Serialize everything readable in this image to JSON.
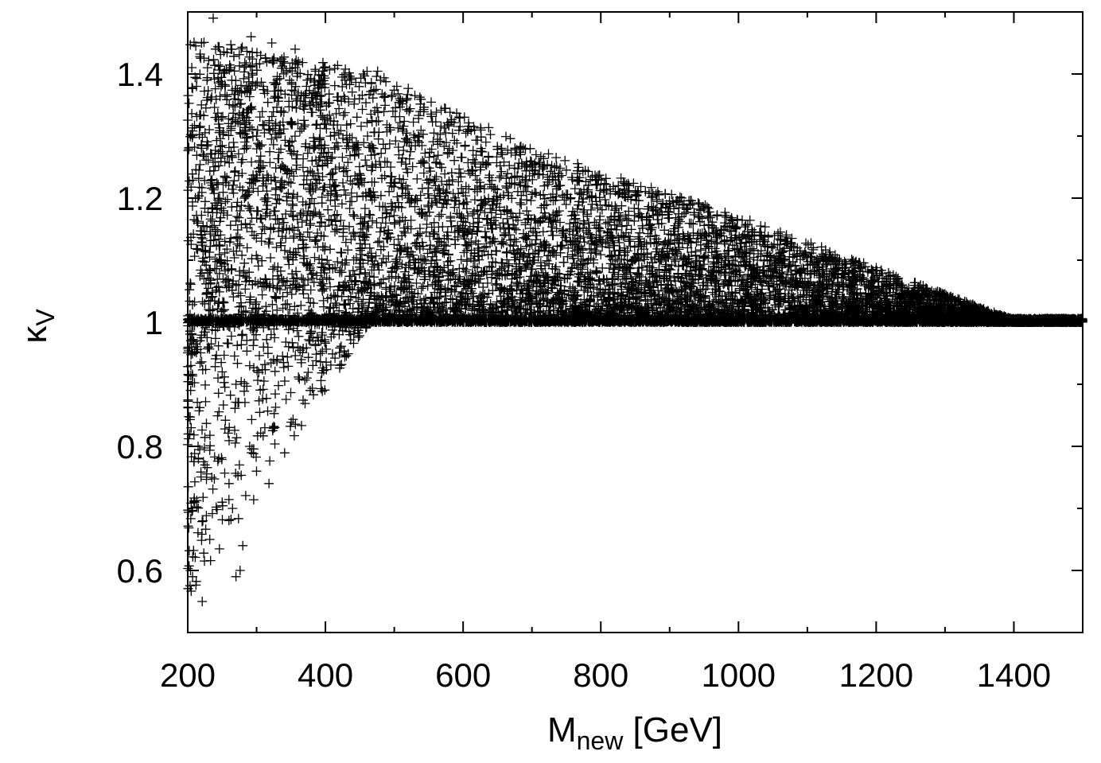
{
  "chart_data": {
    "type": "scatter",
    "title": "",
    "marker": "+",
    "marker_color": "#000000",
    "xlabel": {
      "main": "M",
      "sub": "new",
      "unit": " [GeV]"
    },
    "ylabel": {
      "main": "κ",
      "sub": "V"
    },
    "xlim": [
      200,
      1500
    ],
    "ylim": [
      0.5,
      1.5
    ],
    "x_ticks": [
      200,
      400,
      600,
      800,
      1000,
      1200,
      1400
    ],
    "x_tick_labels": [
      "200",
      "400",
      "600",
      "800",
      "1000",
      "1200",
      "1400"
    ],
    "x_minor_ticks": [
      300,
      500,
      700,
      900,
      1100,
      1300,
      1500
    ],
    "y_ticks": [
      0.6,
      0.8,
      1.0,
      1.2,
      1.4
    ],
    "y_tick_labels": [
      "0.6",
      "0.8",
      "1",
      "1.2",
      "1.4"
    ],
    "y_minor_ticks": [
      0.7,
      0.9,
      1.1,
      1.3
    ],
    "grid": false,
    "legend": "none",
    "sample_points": [
      [
        237,
        1.49
      ],
      [
        220,
        1.45
      ],
      [
        263,
        1.44
      ],
      [
        292,
        1.46
      ],
      [
        322,
        1.45
      ],
      [
        356,
        1.44
      ],
      [
        306,
        1.43
      ],
      [
        339,
        1.42
      ],
      [
        228,
        1.39
      ],
      [
        264,
        1.39
      ],
      [
        348,
        1.39
      ],
      [
        384,
        1.39
      ],
      [
        455,
        1.4
      ],
      [
        480,
        1.39
      ],
      [
        498,
        1.34
      ],
      [
        535,
        1.3
      ],
      [
        580,
        1.28
      ],
      [
        626,
        1.28
      ],
      [
        656,
        1.28
      ],
      [
        700,
        1.25
      ],
      [
        740,
        1.22
      ],
      [
        780,
        1.21
      ],
      [
        813,
        1.14
      ],
      [
        856,
        1.13
      ],
      [
        913,
        1.09
      ],
      [
        960,
        1.07
      ],
      [
        240,
        1.33
      ],
      [
        300,
        1.3
      ],
      [
        360,
        1.32
      ],
      [
        420,
        1.25
      ],
      [
        470,
        1.28
      ],
      [
        520,
        1.2
      ],
      [
        560,
        1.22
      ],
      [
        610,
        1.15
      ],
      [
        660,
        1.18
      ],
      [
        720,
        1.12
      ],
      [
        760,
        1.15
      ],
      [
        820,
        1.08
      ],
      [
        230,
        0.96
      ],
      [
        250,
        0.92
      ],
      [
        270,
        0.9
      ],
      [
        290,
        0.93
      ],
      [
        310,
        0.96
      ],
      [
        330,
        0.94
      ],
      [
        360,
        0.96
      ],
      [
        390,
        0.97
      ],
      [
        420,
        0.98
      ],
      [
        378,
        0.89
      ],
      [
        205,
        0.83
      ],
      [
        215,
        0.8
      ],
      [
        225,
        0.77
      ],
      [
        235,
        0.75
      ],
      [
        245,
        0.78
      ],
      [
        260,
        0.74
      ],
      [
        275,
        0.77
      ],
      [
        290,
        0.8
      ],
      [
        300,
        0.76
      ],
      [
        318,
        0.74
      ],
      [
        312,
        0.83
      ],
      [
        323,
        0.83
      ],
      [
        210,
        0.71
      ],
      [
        222,
        0.68
      ],
      [
        232,
        0.65
      ],
      [
        250,
        0.71
      ],
      [
        265,
        0.7
      ],
      [
        280,
        0.64
      ],
      [
        276,
        0.6
      ],
      [
        270,
        0.59
      ],
      [
        207,
        0.59
      ],
      [
        204,
        0.6
      ],
      [
        221,
        0.55
      ],
      [
        600,
        1.01
      ],
      [
        800,
        1.02
      ],
      [
        1000,
        1.01
      ],
      [
        1200,
        1.01
      ],
      [
        1400,
        1.005
      ],
      [
        1500,
        1.003
      ]
    ]
  }
}
